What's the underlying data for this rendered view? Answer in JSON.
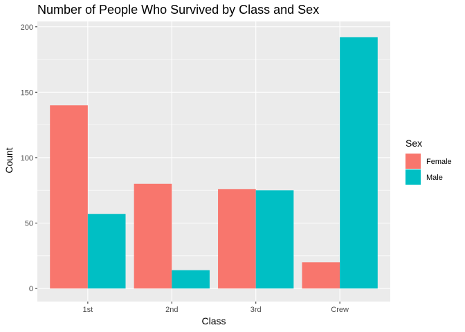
{
  "chart_data": {
    "type": "bar",
    "title": "Number of People Who Survived by Class and Sex",
    "xlabel": "Class",
    "ylabel": "Count",
    "categories": [
      "1st",
      "2nd",
      "3rd",
      "Crew"
    ],
    "series": [
      {
        "name": "Female",
        "color": "#F8766D",
        "values": [
          140,
          80,
          76,
          20
        ]
      },
      {
        "name": "Male",
        "color": "#00BFC4",
        "values": [
          57,
          14,
          75,
          192
        ]
      }
    ],
    "ylim": [
      0,
      200
    ],
    "yticks": [
      0,
      50,
      100,
      150,
      200
    ],
    "grid": true,
    "legend": {
      "title": "Sex",
      "position": "right"
    },
    "panel_background": "#EBEBEB"
  }
}
